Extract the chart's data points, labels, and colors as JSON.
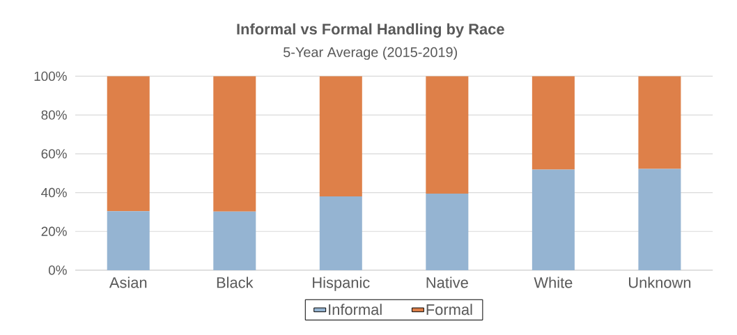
{
  "chart_data": {
    "type": "bar",
    "stacked": true,
    "title": "Informal vs Formal Handling by Race",
    "subtitle": "5-Year Average (2015-2019)",
    "categories": [
      "Asian",
      "Black",
      "Hispanic",
      "Native",
      "White",
      "Unknown"
    ],
    "series": [
      {
        "name": "Informal",
        "color": "#95b4d2",
        "values": [
          30.4,
          30.2,
          38.0,
          39.5,
          51.9,
          52.2
        ]
      },
      {
        "name": "Formal",
        "color": "#de8049",
        "values": [
          69.6,
          69.8,
          62.0,
          60.5,
          48.1,
          47.8
        ]
      }
    ],
    "ylim": [
      0,
      100
    ],
    "yticks": [
      {
        "value": 0,
        "label": "0%"
      },
      {
        "value": 20,
        "label": "20%"
      },
      {
        "value": 40,
        "label": "40%"
      },
      {
        "value": 60,
        "label": "60%"
      },
      {
        "value": 80,
        "label": "80%"
      },
      {
        "value": 100,
        "label": "100%"
      }
    ],
    "grid": "y",
    "legend": "bottom"
  }
}
